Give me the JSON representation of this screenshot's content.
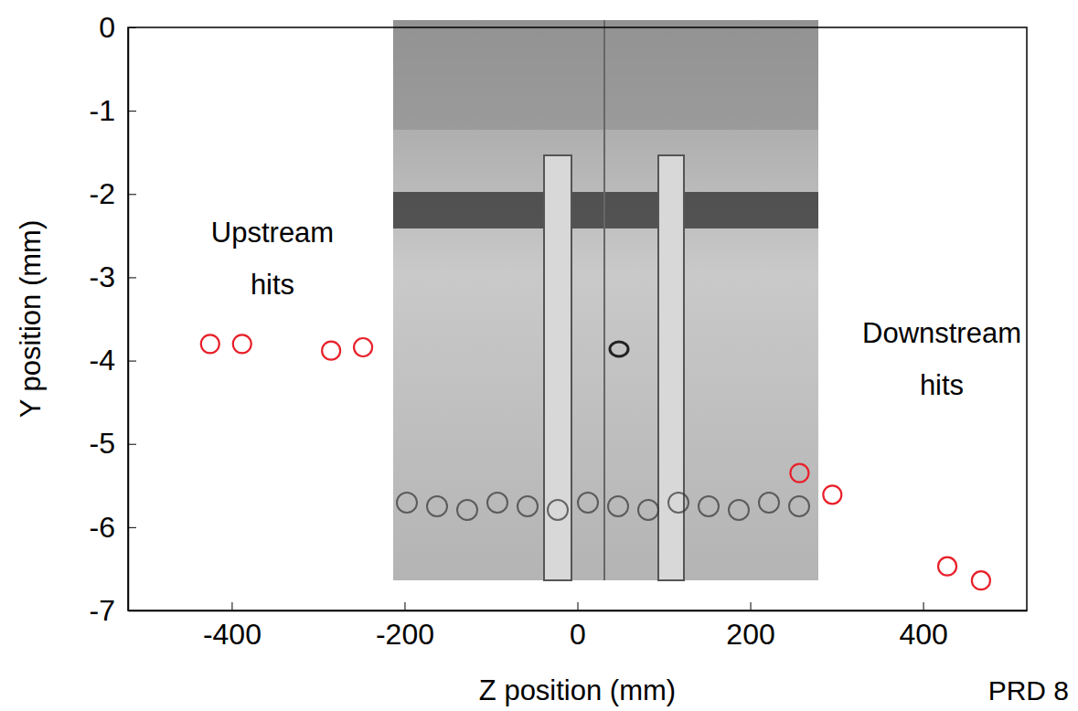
{
  "chart_data": {
    "type": "scatter",
    "x_label": "Z position (mm)",
    "y_label": "Y position (mm)",
    "x": [
      -425,
      -388,
      -285,
      -248,
      257,
      295,
      428,
      467
    ],
    "values": [
      -3.8,
      -3.8,
      -3.88,
      -3.84,
      -5.35,
      -5.61,
      -6.47,
      -6.64
    ],
    "color": "#e8202a",
    "marker": "open-circle",
    "xlim": [
      -520,
      520
    ],
    "ylim": [
      -7,
      0
    ],
    "xticks": [
      -400,
      -200,
      0,
      200,
      400
    ],
    "yticks": [
      -7,
      -6,
      -5,
      -4,
      -3,
      -2,
      -1,
      0
    ],
    "grid": false,
    "annotations": [
      "Upstream hits",
      "Downstream hits",
      "PRD 8"
    ]
  }
}
